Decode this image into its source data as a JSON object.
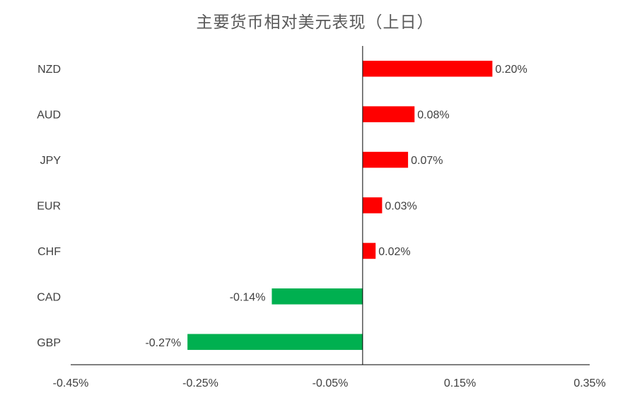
{
  "chart_data": {
    "type": "bar",
    "orientation": "horizontal",
    "title": "主要货币相对美元表现（上日）",
    "xlabel": "",
    "ylabel": "",
    "xlim": [
      -0.45,
      0.35
    ],
    "x_ticks": [
      "-0.45%",
      "-0.25%",
      "-0.05%",
      "0.15%",
      "0.35%"
    ],
    "x_tick_values": [
      -0.45,
      -0.25,
      -0.05,
      0.15,
      0.35
    ],
    "grid": false,
    "legend": "none",
    "categories": [
      "NZD",
      "AUD",
      "JPY",
      "EUR",
      "CHF",
      "CAD",
      "GBP"
    ],
    "values": [
      0.2,
      0.08,
      0.07,
      0.03,
      0.02,
      -0.14,
      -0.27
    ],
    "data_labels": [
      "0.20%",
      "0.08%",
      "0.07%",
      "0.03%",
      "0.02%",
      "-0.14%",
      "-0.27%"
    ],
    "colors": {
      "positive": "#ff0000",
      "negative": "#00b050",
      "axis": "#000000",
      "text": "#404040",
      "title": "#595959"
    }
  }
}
